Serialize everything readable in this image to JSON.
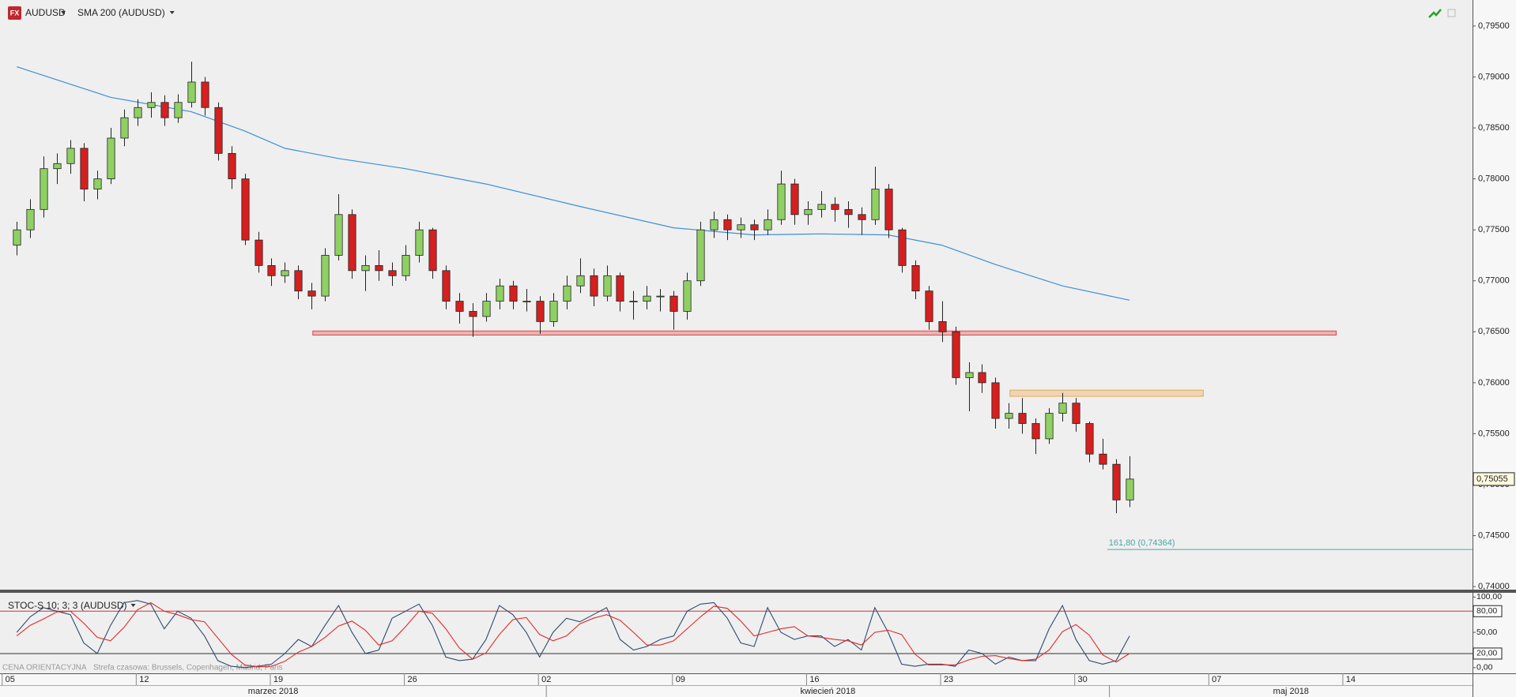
{
  "chart_data": [
    {
      "type": "candlestick",
      "title": "AUDUSD",
      "x": [
        "2018-03-05 00:00",
        "2018-03-05 12:00",
        "2018-03-06 00:00",
        "2018-03-06 12:00",
        "2018-03-07 00:00",
        "2018-03-07 12:00",
        "2018-03-08 00:00",
        "2018-03-08 12:00",
        "2018-03-09 00:00",
        "2018-03-09 12:00",
        "2018-03-12 00:00",
        "2018-03-12 12:00",
        "2018-03-13 00:00",
        "2018-03-13 12:00",
        "2018-03-14 00:00",
        "2018-03-14 12:00",
        "2018-03-15 00:00",
        "2018-03-15 12:00",
        "2018-03-16 00:00",
        "2018-03-16 12:00",
        "2018-03-19 00:00",
        "2018-03-19 12:00",
        "2018-03-20 00:00",
        "2018-03-20 12:00",
        "2018-03-21 00:00",
        "2018-03-21 12:00",
        "2018-03-22 00:00",
        "2018-03-22 12:00",
        "2018-03-23 00:00",
        "2018-03-23 12:00",
        "2018-03-26 00:00",
        "2018-03-26 12:00",
        "2018-03-27 00:00",
        "2018-03-27 12:00",
        "2018-03-28 00:00",
        "2018-03-28 12:00",
        "2018-03-29 00:00",
        "2018-03-29 12:00",
        "2018-03-30 00:00",
        "2018-03-30 12:00",
        "2018-04-02 00:00",
        "2018-04-02 12:00",
        "2018-04-03 00:00",
        "2018-04-03 12:00",
        "2018-04-04 00:00",
        "2018-04-04 12:00",
        "2018-04-05 00:00",
        "2018-04-05 12:00",
        "2018-04-06 00:00",
        "2018-04-06 12:00",
        "2018-04-09 00:00",
        "2018-04-09 12:00",
        "2018-04-10 00:00",
        "2018-04-10 12:00",
        "2018-04-11 00:00",
        "2018-04-11 12:00",
        "2018-04-12 00:00",
        "2018-04-12 12:00",
        "2018-04-13 00:00",
        "2018-04-13 12:00",
        "2018-04-16 00:00",
        "2018-04-16 12:00",
        "2018-04-17 00:00",
        "2018-04-17 12:00",
        "2018-04-18 00:00",
        "2018-04-18 12:00",
        "2018-04-19 00:00",
        "2018-04-19 12:00",
        "2018-04-20 00:00",
        "2018-04-20 12:00",
        "2018-04-23 00:00",
        "2018-04-23 12:00",
        "2018-04-24 00:00",
        "2018-04-24 12:00",
        "2018-04-25 00:00",
        "2018-04-25 12:00",
        "2018-04-26 00:00",
        "2018-04-26 12:00",
        "2018-04-27 00:00",
        "2018-04-27 12:00",
        "2018-04-30 00:00",
        "2018-04-30 12:00",
        "2018-05-01 00:00",
        "2018-05-01 12:00"
      ],
      "open": [
        0.7735,
        0.775,
        0.777,
        0.781,
        0.7815,
        0.783,
        0.779,
        0.78,
        0.784,
        0.786,
        0.787,
        0.7875,
        0.786,
        0.7875,
        0.7895,
        0.787,
        0.7825,
        0.78,
        0.774,
        0.7715,
        0.7705,
        0.771,
        0.769,
        0.7685,
        0.7725,
        0.7765,
        0.771,
        0.7715,
        0.771,
        0.7705,
        0.7725,
        0.775,
        0.771,
        0.768,
        0.767,
        0.7665,
        0.768,
        0.7695,
        0.768,
        0.768,
        0.766,
        0.768,
        0.7695,
        0.7705,
        0.7685,
        0.7705,
        0.768,
        0.768,
        0.7685,
        0.7685,
        0.767,
        0.77,
        0.775,
        0.776,
        0.775,
        0.7755,
        0.775,
        0.776,
        0.7795,
        0.7765,
        0.777,
        0.7775,
        0.777,
        0.7765,
        0.776,
        0.779,
        0.775,
        0.7715,
        0.769,
        0.766,
        0.765,
        0.7605,
        0.761,
        0.76,
        0.7565,
        0.757,
        0.756,
        0.7545,
        0.757,
        0.758,
        0.756,
        0.753,
        0.752,
        0.7485
      ],
      "high": [
        0.7758,
        0.778,
        0.7822,
        0.7825,
        0.7838,
        0.7835,
        0.7808,
        0.785,
        0.7868,
        0.7878,
        0.7885,
        0.7882,
        0.7883,
        0.7915,
        0.79,
        0.7875,
        0.7832,
        0.7805,
        0.7748,
        0.7722,
        0.7718,
        0.7715,
        0.7698,
        0.7732,
        0.7785,
        0.777,
        0.7725,
        0.773,
        0.7718,
        0.7735,
        0.7758,
        0.7752,
        0.7715,
        0.7688,
        0.7678,
        0.7688,
        0.7702,
        0.77,
        0.7692,
        0.7685,
        0.7688,
        0.7705,
        0.7722,
        0.7712,
        0.7715,
        0.7708,
        0.769,
        0.7695,
        0.7692,
        0.769,
        0.7708,
        0.7758,
        0.7768,
        0.7765,
        0.7762,
        0.776,
        0.777,
        0.7808,
        0.78,
        0.7778,
        0.7788,
        0.7782,
        0.7778,
        0.7772,
        0.7812,
        0.7795,
        0.7752,
        0.772,
        0.7695,
        0.768,
        0.7655,
        0.762,
        0.7618,
        0.7605,
        0.758,
        0.7585,
        0.7565,
        0.7575,
        0.759,
        0.7585,
        0.7562,
        0.7545,
        0.7525,
        0.7528
      ],
      "low": [
        0.7725,
        0.7742,
        0.7762,
        0.7795,
        0.7805,
        0.7778,
        0.778,
        0.7795,
        0.7832,
        0.7852,
        0.786,
        0.7852,
        0.7855,
        0.787,
        0.7862,
        0.7818,
        0.779,
        0.7735,
        0.7708,
        0.7695,
        0.7698,
        0.7682,
        0.7672,
        0.768,
        0.772,
        0.7702,
        0.769,
        0.77,
        0.7695,
        0.77,
        0.7718,
        0.7702,
        0.7672,
        0.7658,
        0.7645,
        0.766,
        0.7672,
        0.7672,
        0.767,
        0.7648,
        0.7655,
        0.7672,
        0.7688,
        0.7675,
        0.768,
        0.767,
        0.7662,
        0.7672,
        0.767,
        0.7652,
        0.7662,
        0.7695,
        0.7742,
        0.774,
        0.7742,
        0.774,
        0.7745,
        0.7755,
        0.7755,
        0.7755,
        0.7762,
        0.7758,
        0.7752,
        0.7745,
        0.7755,
        0.7742,
        0.7708,
        0.7682,
        0.7652,
        0.764,
        0.7598,
        0.7572,
        0.759,
        0.7555,
        0.7555,
        0.755,
        0.753,
        0.754,
        0.7562,
        0.7552,
        0.7522,
        0.7515,
        0.7472,
        0.7478
      ],
      "close": [
        0.775,
        0.777,
        0.781,
        0.7815,
        0.783,
        0.779,
        0.78,
        0.784,
        0.786,
        0.787,
        0.7875,
        0.786,
        0.7875,
        0.7895,
        0.787,
        0.7825,
        0.78,
        0.774,
        0.7715,
        0.7705,
        0.771,
        0.769,
        0.7685,
        0.7725,
        0.7765,
        0.771,
        0.7715,
        0.771,
        0.7705,
        0.7725,
        0.775,
        0.771,
        0.768,
        0.767,
        0.7665,
        0.768,
        0.7695,
        0.768,
        0.768,
        0.766,
        0.768,
        0.7695,
        0.7705,
        0.7685,
        0.7705,
        0.768,
        0.768,
        0.7685,
        0.7685,
        0.767,
        0.77,
        0.775,
        0.776,
        0.775,
        0.7755,
        0.775,
        0.776,
        0.7795,
        0.7765,
        0.777,
        0.7775,
        0.777,
        0.7765,
        0.776,
        0.779,
        0.775,
        0.7715,
        0.769,
        0.766,
        0.765,
        0.7605,
        0.761,
        0.76,
        0.7565,
        0.757,
        0.756,
        0.7545,
        0.757,
        0.758,
        0.756,
        0.753,
        0.752,
        0.7485,
        0.75055
      ],
      "up_color": "#8fd063",
      "down_color": "#d61f1f",
      "series": [
        {
          "name": "SMA 200 (AUDUSD)",
          "color": "#3d8fd8",
          "x": [
            "2018-03-05 00:00",
            "2018-03-08 12:00",
            "2018-03-13 12:00",
            "2018-03-15 12:00",
            "2018-03-19 00:00",
            "2018-03-21 00:00",
            "2018-03-23 12:00",
            "2018-03-28 12:00",
            "2018-04-03 00:00",
            "2018-04-06 12:00",
            "2018-04-11 12:00",
            "2018-04-16 00:00",
            "2018-04-18 12:00",
            "2018-04-20 12:00",
            "2018-04-24 12:00",
            "2018-04-27 00:00",
            "2018-05-01 12:00"
          ],
          "values": [
            0.791,
            0.788,
            0.7866,
            0.7847,
            0.783,
            0.782,
            0.781,
            0.7795,
            0.7773,
            0.7752,
            0.7745,
            0.7746,
            0.7745,
            0.7735,
            0.7716,
            0.7695,
            0.7681
          ]
        }
      ],
      "zones": [
        {
          "from": "2018-03-20 07:00",
          "to": "2018-05-11 11:00",
          "low": 0.76475,
          "high": 0.765,
          "color": "#e04848"
        },
        {
          "from": "2018-04-25 07:00",
          "to": "2018-05-04 12:00",
          "low": 0.75875,
          "high": 0.7592,
          "color": "#e8a850"
        }
      ],
      "fib_line": {
        "value": 0.74364,
        "label": "161,80 (0,74364)",
        "from": "2018-04-30 22:00",
        "color": "#4ca6a6"
      },
      "last_price": {
        "value": 0.75055,
        "label": "0,75055"
      },
      "xlim": [
        "2018-03-02 15:00",
        "2018-05-18 13:00"
      ],
      "ylim": [
        0.7397,
        0.79755
      ],
      "yticks": [
        {
          "value": 0.74,
          "label": "0,74000"
        },
        {
          "value": 0.745,
          "label": "0,74500"
        },
        {
          "value": 0.75,
          "label": "0,75000"
        },
        {
          "value": 0.755,
          "label": "0,75500"
        },
        {
          "value": 0.76,
          "label": "0,76000"
        },
        {
          "value": 0.765,
          "label": "0,76500"
        },
        {
          "value": 0.77,
          "label": "0,77000"
        },
        {
          "value": 0.775,
          "label": "0,77500"
        },
        {
          "value": 0.78,
          "label": "0,78000"
        },
        {
          "value": 0.785,
          "label": "0,78500"
        },
        {
          "value": 0.79,
          "label": "0,79000"
        },
        {
          "value": 0.795,
          "label": "0,79500"
        }
      ],
      "xticks": [
        {
          "value": "2018-03-05",
          "label": "05"
        },
        {
          "value": "2018-03-12",
          "label": "12"
        },
        {
          "value": "2018-03-19",
          "label": "19"
        },
        {
          "value": "2018-03-26",
          "label": "26"
        },
        {
          "value": "2018-04-02",
          "label": "02"
        },
        {
          "value": "2018-04-09",
          "label": "09"
        },
        {
          "value": "2018-04-16",
          "label": "16"
        },
        {
          "value": "2018-04-23",
          "label": "23"
        },
        {
          "value": "2018-04-30",
          "label": "30"
        },
        {
          "value": "2018-05-07",
          "label": "07"
        },
        {
          "value": "2018-05-14",
          "label": "14"
        }
      ],
      "month_labels": [
        {
          "value": "2018-03-01",
          "label": "marzec 2018"
        },
        {
          "value": "2018-04-01",
          "label": "kwiecień 2018"
        },
        {
          "value": "2018-05-01",
          "label": "maj 2018"
        }
      ]
    },
    {
      "type": "line",
      "title": "STOC-S 10; 3; 3 (AUDUSD)",
      "series": [
        {
          "color": "#2e4b6e",
          "values": [
            50,
            72,
            85,
            80,
            75,
            35,
            20,
            60,
            92,
            95,
            90,
            55,
            80,
            70,
            45,
            10,
            2,
            0,
            2,
            5,
            20,
            40,
            30,
            60,
            88,
            50,
            20,
            25,
            70,
            80,
            90,
            60,
            15,
            10,
            12,
            40,
            88,
            75,
            50,
            15,
            50,
            70,
            65,
            75,
            85,
            40,
            25,
            30,
            40,
            45,
            80,
            90,
            92,
            70,
            35,
            30,
            85,
            50,
            40,
            45,
            45,
            30,
            40,
            25,
            85,
            50,
            5,
            2,
            5,
            5,
            2,
            25,
            20,
            5,
            15,
            10,
            10,
            55,
            88,
            40,
            10,
            5,
            10,
            45
          ]
        },
        {
          "color": "#e02a2a",
          "values": [
            45,
            60,
            69,
            79,
            80,
            63,
            43,
            38,
            57,
            82,
            92,
            80,
            75,
            68,
            65,
            42,
            19,
            4,
            1,
            2,
            9,
            22,
            30,
            43,
            59,
            66,
            53,
            32,
            38,
            58,
            80,
            77,
            55,
            28,
            12,
            21,
            47,
            68,
            71,
            47,
            38,
            45,
            62,
            70,
            75,
            67,
            50,
            32,
            32,
            38,
            55,
            72,
            87,
            84,
            66,
            45,
            50,
            55,
            58,
            45,
            43,
            40,
            38,
            32,
            50,
            53,
            47,
            19,
            4,
            4,
            4,
            11,
            16,
            17,
            13,
            10,
            12,
            25,
            51,
            61,
            46,
            18,
            8,
            20
          ]
        }
      ],
      "levels": [
        {
          "value": 80,
          "color": "#d83030"
        },
        {
          "value": 20,
          "color": "#333333"
        }
      ],
      "ylim": [
        -8,
        106
      ],
      "yticks": [
        {
          "value": 0,
          "label": "0,00"
        },
        {
          "value": 20,
          "label": "20,00"
        },
        {
          "value": 50,
          "label": "50,00"
        },
        {
          "value": 80,
          "label": "80,00"
        },
        {
          "value": 100,
          "label": "100,00"
        }
      ]
    }
  ],
  "footer": {
    "price_note": "CENA ORIENTACYJNA",
    "timezone": "Strefa czasowa: Brussels, Copenhagen, Madrid, Paris"
  }
}
